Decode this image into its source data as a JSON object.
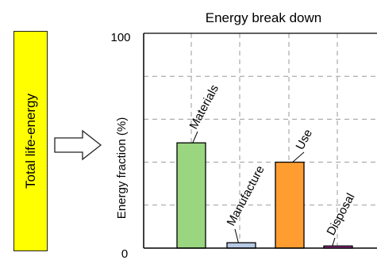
{
  "left_box": {
    "label": "Total life-energy",
    "color": "#ffff00"
  },
  "chart_data": {
    "type": "bar",
    "title": "Energy break down",
    "xlabel": "",
    "ylabel": "Energy fraction (%)",
    "ylim": [
      0,
      100
    ],
    "ytick_labels": [
      "100",
      "0"
    ],
    "grid": true,
    "categories": [
      "Materials",
      "Manufacture",
      "Use",
      "Disposal"
    ],
    "values": [
      49,
      2.5,
      40,
      1
    ],
    "colors": [
      "#99d67f",
      "#b6c8e4",
      "#ff9d31",
      "#a8329f"
    ]
  }
}
